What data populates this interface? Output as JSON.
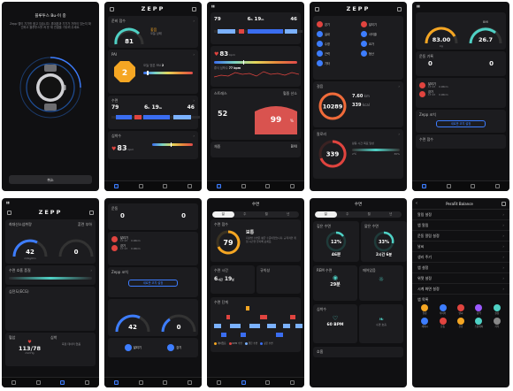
{
  "colors": {
    "accent": "#3d7dff",
    "orange": "#f5a623",
    "red": "#e0443f",
    "teal": "#4fd1c5",
    "bg": "#101012",
    "card": "#1c1c1f"
  },
  "brand": "ZEPP",
  "s1": {
    "title": "블루투스 Bu-이 중",
    "desc": "Zepp 앱이 기기를 찾고 있습니다. 휴대폰과 기기가 가까이 있는지 확인하고 블루투스를 켜 둔 채 연결을 기다려 주세요.",
    "button": "취소",
    "device_icon": "smartwatch-icon"
  },
  "s2": {
    "card1": {
      "label": "준비 점수",
      "value": "81",
      "status": "좋음",
      "sub": "오늘 상태"
    },
    "card2": {
      "label": "PAI",
      "value": "2",
      "sub_label": "오늘 얻은 PAI",
      "sub_value": "2"
    },
    "card3": {
      "label": "수면",
      "v1": "79",
      "v2_h": "6",
      "v2_m": "19",
      "v3": "46"
    },
    "card4": {
      "label": "심박수",
      "value": "83",
      "unit": "bpm"
    }
  },
  "s3": {
    "sleep": {
      "v1": "79",
      "h": "6",
      "m": "19",
      "v3": "46"
    },
    "hr": {
      "value": "83",
      "unit": "bpm",
      "sub": "휴식 심박수",
      "sub_val": "77 bpm"
    },
    "stress": {
      "label": "스트레스",
      "value": "52",
      "spo2_label": "혈중 산소",
      "spo2": "99",
      "unit": "%"
    },
    "bottom": {
      "a": "체중",
      "b": "BMI"
    }
  },
  "s4": {
    "quick": [
      "걷기",
      "달리기",
      "실내",
      "사이클",
      "수영",
      "요가",
      "근력",
      "등산",
      "기타"
    ],
    "steps": {
      "label": "걸음",
      "value": "10289",
      "dist": "7.60",
      "dist_unit": "km",
      "cal": "339",
      "cal_unit": "kcal"
    },
    "cal": {
      "label": "칼로리",
      "value": "339",
      "note": "활동 시간 목표 달성",
      "range_a": "2℃",
      "range_b": "30%"
    }
  },
  "s5": {
    "gauge1": {
      "value": "83.00",
      "unit": "kg"
    },
    "gauge2": {
      "value": "26.7",
      "label": "BMI"
    },
    "block": {
      "label": "운동 기록",
      "a": "0",
      "b": "0"
    },
    "runs": [
      {
        "name": "달리기",
        "time": "17:13",
        "dist": "0.96km"
      },
      {
        "name": "걷기",
        "time": "17:13",
        "dist": "0.96km"
      }
    ],
    "zepp": {
      "label": "Zepp 코치",
      "button": "새로운 코치 설정"
    },
    "bottom": "수면 점수"
  },
  "s6": {
    "gauge1": {
      "value": "42",
      "unit": "ml/kg/min",
      "label": "최대산소섭취량"
    },
    "gauge2": {
      "value": "0",
      "label": "훈련 부하"
    },
    "card": "수면 호흡 품질",
    "ecg": "심전도(ECG)",
    "bp": {
      "label": "혈압",
      "value": "113/78",
      "unit": "mmHg"
    },
    "hr": {
      "label": "심박",
      "text": "측정 데이터 없음"
    }
  },
  "s7": {
    "block": {
      "label": "운동",
      "a": "0",
      "b": "0"
    },
    "runs": [
      {
        "name": "달리기",
        "time": "17:13",
        "dist": "0.96km"
      },
      {
        "name": "걷기",
        "time": "17:13",
        "dist": "0.96km"
      }
    ],
    "zepp": {
      "label": "Zepp 코치",
      "button": "새로운 코치 설정"
    },
    "gauge1": "42",
    "gauge2": "0",
    "chips": [
      "달리기",
      "걷기"
    ]
  },
  "s8": {
    "title": "수면",
    "tabs": [
      "일",
      "주",
      "월",
      "년"
    ],
    "score": {
      "label": "수면 점수",
      "value": "79",
      "status": "보통",
      "desc": "지난밤 수면은 평균 수준이었습니다. 규칙적인 취침 시간을 유지해 보세요."
    },
    "duration": {
      "label": "수면 시간",
      "h": "6",
      "m": "19"
    },
    "regular": "규칙성",
    "chart_label": "수면 단계",
    "legend": [
      "깨어있음",
      "REM 수면",
      "얕은 수면",
      "깊은 수면"
    ]
  },
  "s9": {
    "title": "수면",
    "tabs": [
      "일",
      "주",
      "월",
      "년"
    ],
    "deep": {
      "label": "깊은 수면",
      "value": "12%",
      "time": "46분"
    },
    "light": {
      "label": "얕은 수면",
      "value": "33%",
      "time": "2시간 6분"
    },
    "rem": {
      "label": "REM 수면",
      "value": "29분"
    },
    "wake": "깨어있음",
    "hr": {
      "label": "심박수",
      "value": "60 BPM"
    },
    "breath": "수면 호흡",
    "bottom": "호흡"
  },
  "s10": {
    "title": "PeraFit Balance",
    "items": [
      "알림 설정",
      "앱 알림",
      "운동 알림 설정",
      "날씨",
      "생리 주기",
      "앱 설정",
      "위젯 설정",
      "시계 화면 설정"
    ],
    "apps_label": "앱 목록",
    "apps": [
      "알람",
      "타이머",
      "날씨",
      "음악",
      "설정",
      "세계시",
      "운동",
      "건강",
      "스톱워치",
      "기타"
    ]
  }
}
